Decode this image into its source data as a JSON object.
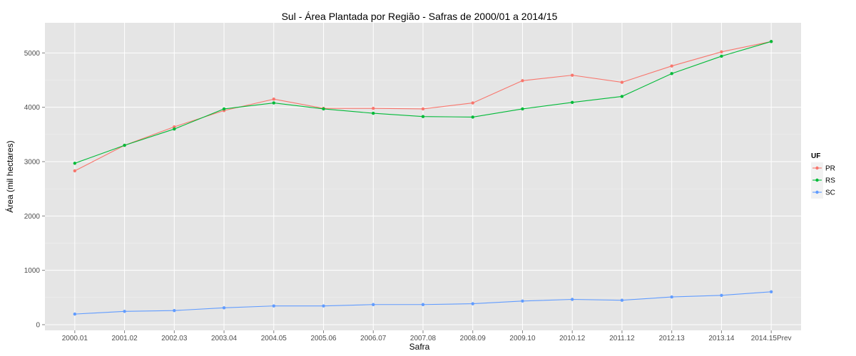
{
  "chart_data": {
    "type": "line",
    "title": "Sul  - Área Plantada por Região - Safras de 2000/01 a 2014/15",
    "xlabel": "Safra",
    "ylabel": "Área (mil hectares)",
    "ylim": [
      0,
      5450
    ],
    "yticks": [
      0,
      1000,
      2000,
      3000,
      4000,
      5000
    ],
    "grid": true,
    "legend_position": "right",
    "legend_title": "UF",
    "categories": [
      "2000.01",
      "2001.02",
      "2002.03",
      "2003.04",
      "2004.05",
      "2005.06",
      "2006.07",
      "2007.08",
      "2008.09",
      "2009.10",
      "2010.12",
      "2011.12",
      "2012.13",
      "2013.14",
      "2014.15Prev"
    ],
    "series": [
      {
        "name": "PR",
        "color": "#F8766D",
        "values": [
          2830,
          3300,
          3640,
          3940,
          4150,
          3980,
          3980,
          3970,
          4080,
          4490,
          4590,
          4460,
          4760,
          5020,
          5210
        ]
      },
      {
        "name": "RS",
        "color": "#00BA38",
        "values": [
          2970,
          3300,
          3600,
          3970,
          4080,
          3970,
          3890,
          3830,
          3820,
          3970,
          4090,
          4200,
          4620,
          4940,
          5210
        ]
      },
      {
        "name": "SC",
        "color": "#619CFF",
        "values": [
          195,
          245,
          260,
          310,
          345,
          345,
          370,
          370,
          385,
          435,
          465,
          450,
          510,
          540,
          605
        ]
      }
    ]
  }
}
